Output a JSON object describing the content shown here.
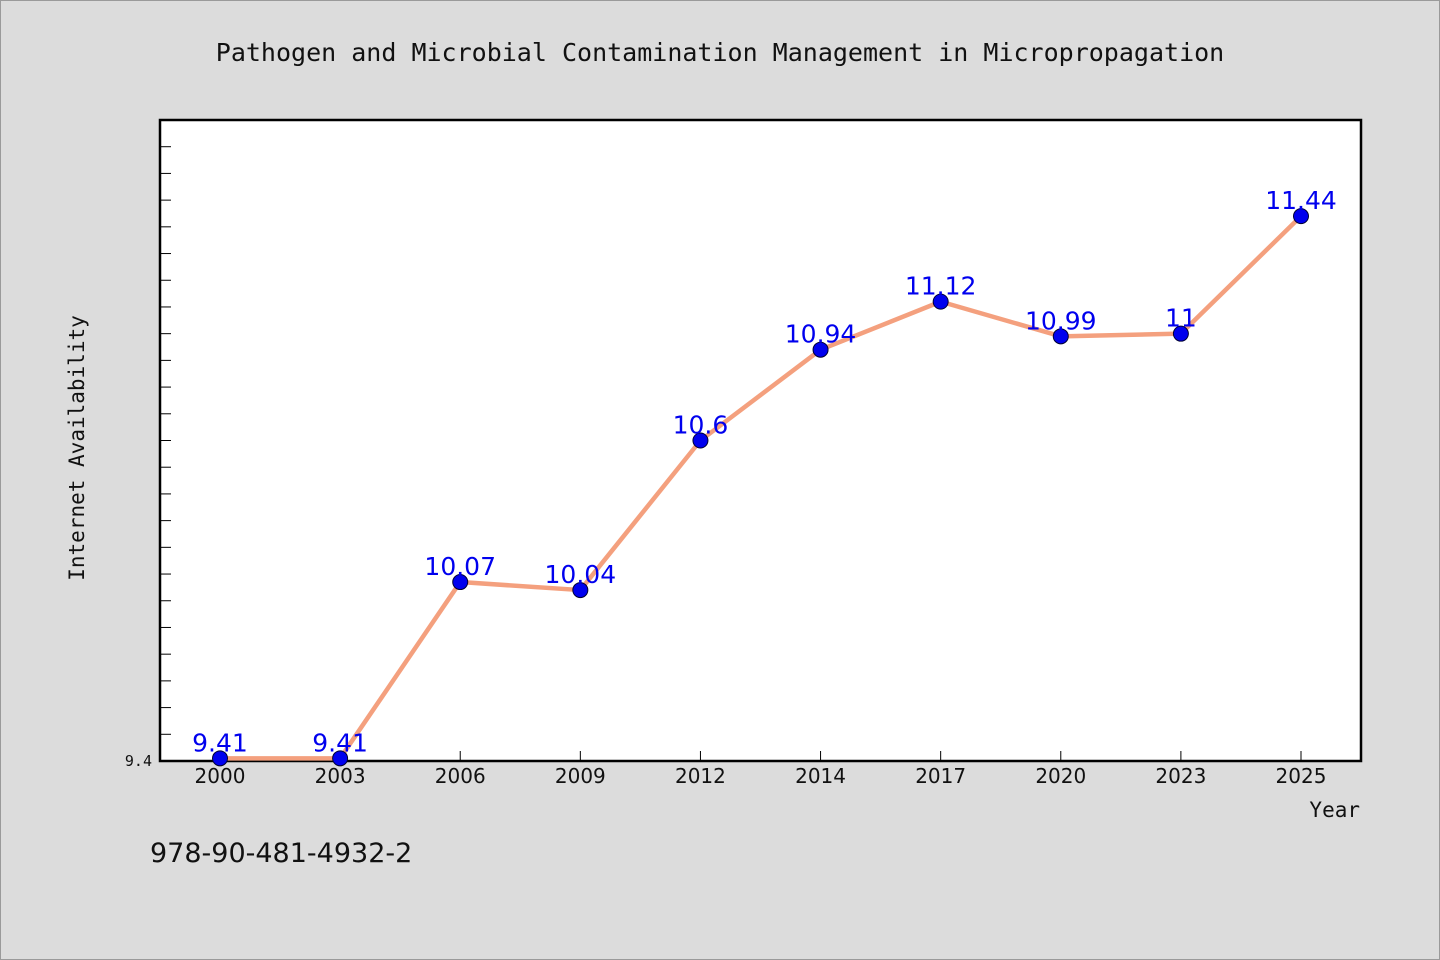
{
  "chart_data": {
    "type": "line",
    "title": "Pathogen and Microbial Contamination Management in Micropropagation",
    "xlabel": "Year",
    "ylabel": "Internet Availability",
    "categories": [
      "2000",
      "2003",
      "2006",
      "2009",
      "2012",
      "2014",
      "2017",
      "2020",
      "2023",
      "2025"
    ],
    "series": [
      {
        "values": [
          9.41,
          9.41,
          10.07,
          10.04,
          10.6,
          10.94,
          11.12,
          10.99,
          11,
          11.44
        ],
        "labels": [
          "9.41",
          "9.41",
          "10.07",
          "10.04",
          "10.6",
          "10.94",
          "11.12",
          "10.99",
          "11",
          "11.44"
        ]
      }
    ],
    "y_tick_labels": [
      "9.4"
    ],
    "ylim": [
      9.4,
      11.8
    ],
    "grid": false,
    "line_color": "#f4a07e",
    "marker_color": "#0000ee",
    "data_label_color": "#0000ee",
    "background_color": "#dcdcdc",
    "plot_background": "#ffffff"
  },
  "footer": {
    "isbn": "978-90-481-4932-2"
  }
}
